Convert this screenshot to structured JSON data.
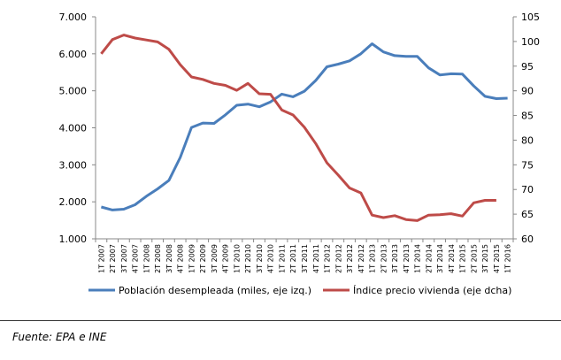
{
  "chart_data": {
    "type": "line",
    "categories": [
      "1T 2007",
      "2T 2007",
      "3T 2007",
      "4T 2007",
      "1T 2008",
      "2T 2008",
      "3T 2008",
      "4T 2008",
      "1T 2009",
      "2T 2009",
      "3T 2009",
      "4T 2009",
      "1T 2010",
      "2T 2010",
      "3T 2010",
      "4T 2010",
      "1T 2011",
      "2T 2011",
      "3T 2011",
      "4T 2011",
      "1T 2012",
      "2T 2012",
      "3T 2012",
      "4T 2012",
      "1T 2013",
      "2T 2013",
      "3T 2013",
      "4T 2013",
      "1T 2014",
      "2T 2014",
      "3T 2014",
      "4T 2014",
      "1T 2015",
      "2T 2015",
      "3T 2015",
      "4T 2015",
      "1T 2016"
    ],
    "series": [
      {
        "name": "Población desempleada (miles, eje izq.)",
        "axis": "left",
        "color": "#4a7ebb",
        "values": [
          1860,
          1780,
          1800,
          1920,
          2150,
          2350,
          2580,
          3200,
          4010,
          4130,
          4120,
          4350,
          4610,
          4640,
          4570,
          4700,
          4910,
          4840,
          4990,
          5280,
          5650,
          5720,
          5810,
          6000,
          6270,
          6050,
          5950,
          5930,
          5930,
          5620,
          5430,
          5460,
          5450,
          5130,
          4850,
          4790,
          4800
        ]
      },
      {
        "name": "Índice precio vivienda (eje dcha)",
        "axis": "right",
        "color": "#be4b48",
        "values": [
          97.5,
          100.4,
          101.3,
          100.7,
          100.3,
          99.9,
          98.4,
          95.3,
          92.8,
          92.3,
          91.5,
          91.1,
          90.1,
          91.5,
          89.4,
          89.3,
          86.1,
          85.1,
          82.6,
          79.3,
          75.4,
          72.9,
          70.3,
          69.3,
          64.8,
          64.3,
          64.7,
          63.9,
          63.7,
          64.8,
          64.9,
          65.1,
          64.6,
          67.3,
          67.8,
          67.8,
          null
        ]
      }
    ],
    "y_left": {
      "lim": [
        1000,
        7000
      ],
      "ticks": [
        1000,
        2000,
        3000,
        4000,
        5000,
        6000,
        7000
      ],
      "tick_labels": [
        "1.000",
        "2.000",
        "3.000",
        "4.000",
        "5.000",
        "6.000",
        "7.000"
      ]
    },
    "y_right": {
      "lim": [
        60,
        105
      ],
      "ticks": [
        60,
        65,
        70,
        75,
        80,
        85,
        90,
        95,
        100,
        105
      ],
      "tick_labels": [
        "60",
        "65",
        "70",
        "75",
        "80",
        "85",
        "90",
        "95",
        "100",
        "105"
      ]
    },
    "grid": false,
    "legend": "bottom"
  },
  "footer": {
    "source": "Fuente: EPA e INE"
  }
}
